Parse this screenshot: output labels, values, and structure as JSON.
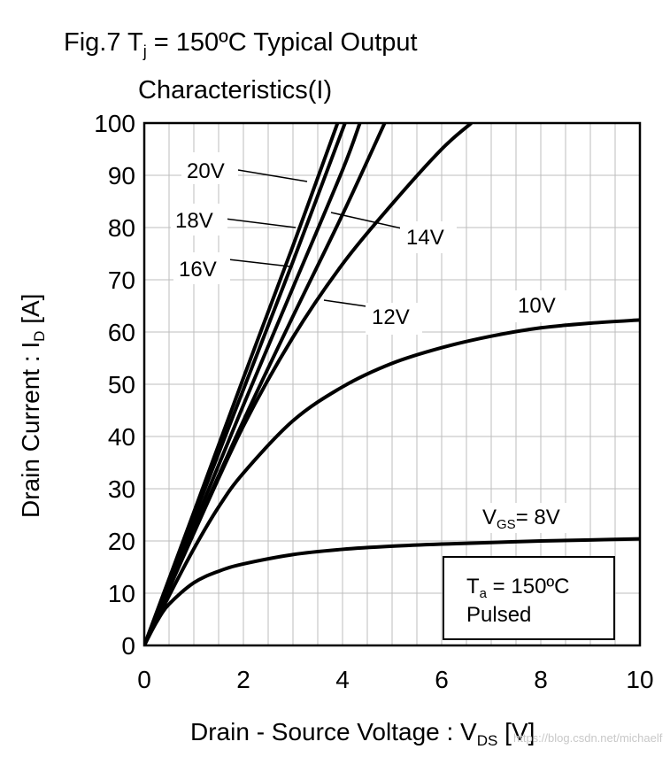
{
  "figure": {
    "title_prefix": "Fig.7 T",
    "title_sub": "j",
    "title_suffix": " = 150ºC Typical Output",
    "title_line2": "Characteristics(I)"
  },
  "chart_data": {
    "type": "line",
    "xlabel_prefix": "Drain - Source Voltage : V",
    "xlabel_sub": "DS",
    "xlabel_suffix": " [V]",
    "ylabel_prefix": "Drain Current : I",
    "ylabel_sub": "D",
    "ylabel_suffix": " [A]",
    "xlim": [
      0,
      10
    ],
    "ylim": [
      0,
      100
    ],
    "x_ticks": [
      "0",
      "2",
      "4",
      "6",
      "8",
      "10"
    ],
    "y_ticks": [
      "0",
      "10",
      "20",
      "30",
      "40",
      "50",
      "60",
      "70",
      "80",
      "90",
      "100"
    ],
    "grid": true,
    "series": [
      {
        "name": "8V",
        "label": "V",
        "label_sub": "GS",
        "label_suffix": "= 8V",
        "x": [
          0,
          0.25,
          0.5,
          1,
          1.5,
          2,
          3,
          4,
          5,
          6,
          7,
          8,
          9,
          10
        ],
        "y": [
          0,
          4.5,
          7.9,
          12.0,
          14.2,
          15.6,
          17.4,
          18.4,
          19.0,
          19.4,
          19.7,
          20.0,
          20.2,
          20.4
        ]
      },
      {
        "name": "10V",
        "label": "10V",
        "x": [
          0,
          0.5,
          1,
          1.5,
          2,
          3,
          4,
          5,
          6,
          7,
          8,
          9,
          10
        ],
        "y": [
          0,
          9.5,
          18.5,
          26.5,
          33.0,
          43.0,
          49.5,
          54.0,
          57.0,
          59.2,
          60.8,
          61.7,
          62.3
        ]
      },
      {
        "name": "12V",
        "label": "12V",
        "x": [
          0,
          1,
          2,
          3,
          4,
          5,
          6,
          6.6
        ],
        "y": [
          0,
          21.5,
          42.0,
          59.0,
          73.0,
          84.5,
          95.0,
          100
        ]
      },
      {
        "name": "14V",
        "label": "14V",
        "x": [
          0,
          1,
          2,
          3,
          4,
          4.85
        ],
        "y": [
          0,
          21.8,
          43.0,
          63.0,
          82.5,
          100
        ]
      },
      {
        "name": "16V",
        "label": "16V",
        "x": [
          0,
          1,
          2,
          3,
          4,
          4.35
        ],
        "y": [
          0,
          23.0,
          46.0,
          68.5,
          91.0,
          100
        ]
      },
      {
        "name": "18V",
        "label": "18V",
        "x": [
          0,
          1,
          2,
          3,
          4.05
        ],
        "y": [
          0,
          24.5,
          49.0,
          73.5,
          100
        ]
      },
      {
        "name": "20V",
        "label": "20V",
        "x": [
          0,
          1,
          2,
          3,
          3.9
        ],
        "y": [
          0,
          25.5,
          51.2,
          76.5,
          100
        ]
      }
    ],
    "annotations": [
      {
        "text": "20V"
      },
      {
        "text": "18V"
      },
      {
        "text": "16V"
      },
      {
        "text": "14V"
      },
      {
        "text": "12V"
      },
      {
        "text": "10V"
      },
      {
        "text": "V",
        "sub": "GS",
        "suffix": "= 8V"
      }
    ],
    "condition_box": {
      "line1_prefix": "T",
      "line1_sub": "a",
      "line1_suffix": " = 150ºC",
      "line2": "Pulsed"
    }
  },
  "watermark": "https://blog.csdn.net/michaelf"
}
